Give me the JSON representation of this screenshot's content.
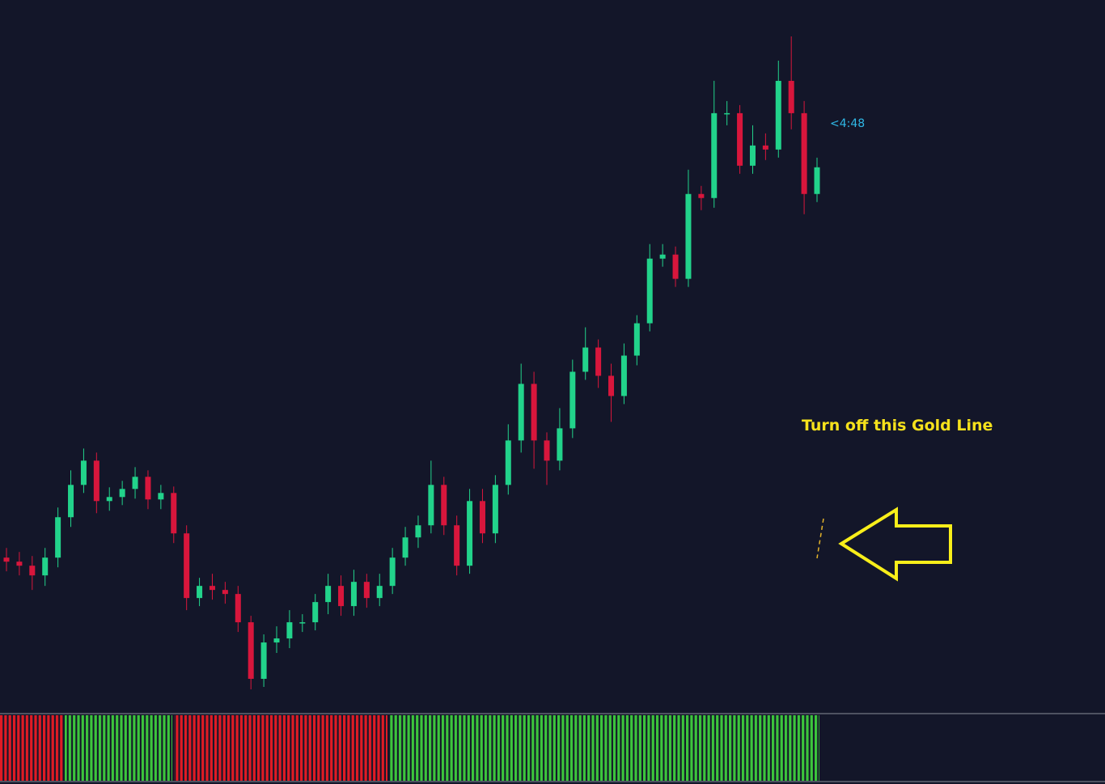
{
  "chart_data": {
    "type": "candlestick",
    "up_color": "#22d38b",
    "down_color": "#d8163c",
    "open": [
      210,
      205,
      200,
      188,
      210,
      260,
      300,
      330,
      280,
      285,
      295,
      310,
      282,
      290,
      240,
      160,
      175,
      170,
      165,
      130,
      60,
      105,
      110,
      130,
      130,
      155,
      175,
      150,
      180,
      160,
      175,
      210,
      235,
      250,
      300,
      250,
      200,
      280,
      240,
      300,
      355,
      425,
      355,
      330,
      370,
      440,
      470,
      435,
      410,
      460,
      500,
      580,
      585,
      555,
      660,
      655,
      760,
      760,
      695,
      720,
      715,
      800,
      760,
      660
    ],
    "high": [
      222,
      217,
      212,
      222,
      272,
      318,
      345,
      340,
      297,
      305,
      322,
      318,
      300,
      298,
      250,
      185,
      190,
      180,
      175,
      138,
      115,
      125,
      145,
      140,
      165,
      190,
      188,
      195,
      190,
      190,
      222,
      248,
      262,
      330,
      310,
      262,
      295,
      295,
      312,
      375,
      450,
      440,
      365,
      395,
      455,
      495,
      480,
      450,
      475,
      510,
      598,
      598,
      595,
      690,
      670,
      800,
      775,
      770,
      745,
      735,
      825,
      855,
      775,
      705
    ],
    "low": [
      193,
      188,
      170,
      175,
      198,
      248,
      290,
      265,
      268,
      275,
      283,
      270,
      270,
      228,
      145,
      150,
      158,
      153,
      118,
      47,
      50,
      92,
      98,
      118,
      120,
      140,
      138,
      138,
      148,
      150,
      165,
      200,
      222,
      240,
      238,
      188,
      190,
      228,
      228,
      288,
      340,
      320,
      300,
      318,
      358,
      430,
      420,
      378,
      400,
      448,
      490,
      570,
      545,
      545,
      640,
      643,
      745,
      685,
      685,
      702,
      705,
      740,
      635,
      650
    ],
    "close": [
      205,
      200,
      188,
      210,
      260,
      300,
      330,
      280,
      285,
      295,
      310,
      282,
      290,
      240,
      160,
      175,
      170,
      165,
      130,
      60,
      105,
      110,
      130,
      130,
      155,
      175,
      150,
      180,
      160,
      175,
      210,
      235,
      250,
      300,
      250,
      200,
      280,
      240,
      300,
      355,
      425,
      355,
      330,
      370,
      440,
      470,
      435,
      410,
      460,
      500,
      580,
      585,
      555,
      660,
      655,
      760,
      760,
      695,
      720,
      715,
      800,
      760,
      660,
      693
    ],
    "timer": "<4:48",
    "annotation": "Turn off this Gold Line"
  }
}
